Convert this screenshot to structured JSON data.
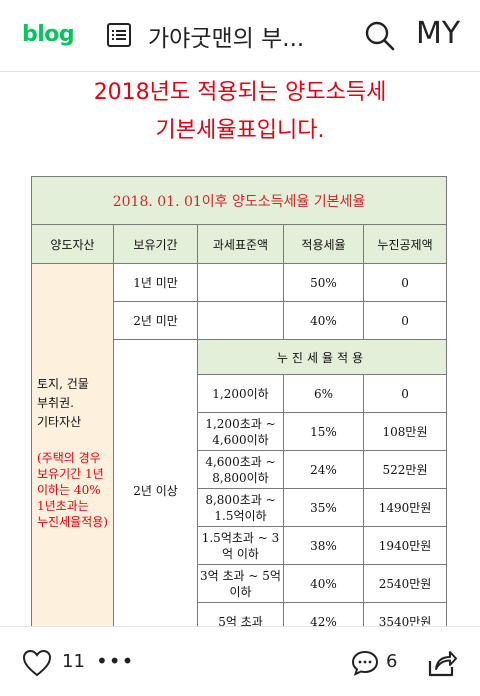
{
  "header": {
    "logo": "blog",
    "blog_title": "가야굿맨의 부...",
    "my_label": "MY"
  },
  "post": {
    "headline_line1": "2018년도 적용되는 양도소득세",
    "headline_line2": "기본세율표입니다."
  },
  "table": {
    "title": "2018. 01. 01이후 양도소득세율 기본세율",
    "columns": [
      "양도자산",
      "보유기간",
      "과세표준액",
      "적용세율",
      "누진공제액"
    ],
    "asset_lines": [
      "토지, 건물",
      "부취권.",
      "기타자산"
    ],
    "asset_note_lines": [
      "(주택의 경우",
      "보유기간 1년",
      "이하는 40%",
      "1년초과는",
      "누진세율적용)"
    ],
    "short_rows": [
      {
        "period": "1년 미만",
        "base": "",
        "rate": "50%",
        "deduction": "0"
      },
      {
        "period": "2년 미만",
        "base": "",
        "rate": "40%",
        "deduction": "0"
      }
    ],
    "long_period": "2년 이상",
    "progressive_header": "누진세율적용",
    "progressive_rows": [
      {
        "base": "1,200이하",
        "rate": "6%",
        "deduction": "0"
      },
      {
        "base": "1,200초과 ~ 4,600이하",
        "rate": "15%",
        "deduction": "108만원"
      },
      {
        "base": "4,600초과 ~ 8,800이하",
        "rate": "24%",
        "deduction": "522만원"
      },
      {
        "base": "8,800초과 ~ 1.5억이하",
        "rate": "35%",
        "deduction": "1490만원"
      },
      {
        "base": "1.5억초과 ~ 3억 이하",
        "rate": "38%",
        "deduction": "1940만원"
      },
      {
        "base": "3억 초과 ~ 5억 이하",
        "rate": "40%",
        "deduction": "2540만원"
      },
      {
        "base": "5억 초과",
        "rate": "42%",
        "deduction": "3540만원"
      }
    ]
  },
  "actions": {
    "like_count": "11",
    "more_label": "•••",
    "comment_count": "6"
  },
  "colors": {
    "brand_green": "#03c75a",
    "headline_red": "#e8000f",
    "header_green": "#e3efd8",
    "asset_beige": "#fdf0dc"
  }
}
